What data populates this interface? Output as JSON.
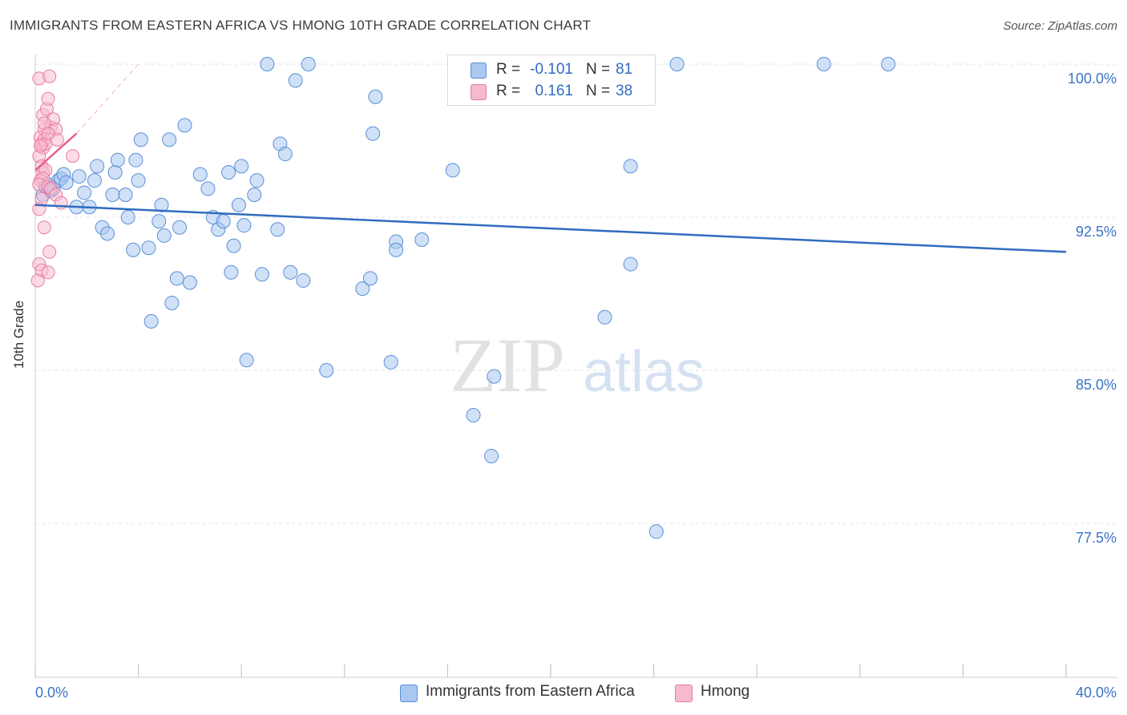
{
  "title": "IMMIGRANTS FROM EASTERN AFRICA VS HMONG 10TH GRADE CORRELATION CHART",
  "source": "Source: ZipAtlas.com",
  "watermark": {
    "zip": "ZIP",
    "atlas": "atlas"
  },
  "colors": {
    "blue_fill": "#a9c8f0",
    "blue_stroke": "#5b8fd6",
    "blue_line": "#2f6cc0",
    "pink_fill": "#f7b9cd",
    "pink_stroke": "#e97aa0",
    "pink_line": "#e8608e",
    "axis_text": "#3a74c4",
    "grid": "#e3e3e3"
  },
  "legend_top": [
    {
      "r_label": "R =",
      "r_value": "-0.101",
      "n_label": "N =",
      "n_value": "81",
      "icon": "blue-square-icon"
    },
    {
      "r_label": "R =",
      "r_value": "0.161",
      "n_label": "N =",
      "n_value": "38",
      "icon": "pink-square-icon"
    }
  ],
  "legend_bottom": [
    {
      "label": "Immigrants from Eastern Africa",
      "icon": "blue-square-icon"
    },
    {
      "label": "Hmong",
      "icon": "pink-square-icon"
    }
  ],
  "chart_data": {
    "type": "scatter",
    "title": "IMMIGRANTS FROM EASTERN AFRICA VS HMONG 10TH GRADE CORRELATION CHART",
    "xlabel": "",
    "ylabel": "10th Grade",
    "xlim": [
      0,
      40
    ],
    "ylim": [
      70,
      101.5
    ],
    "x_tick_labels": [
      "0.0%",
      "40.0%"
    ],
    "y_ticks": [
      77.5,
      85.0,
      92.5,
      100.0
    ],
    "y_tick_labels": [
      "77.5%",
      "85.0%",
      "92.5%",
      "100.0%"
    ],
    "grid": true,
    "series": [
      {
        "name": "Immigrants from Eastern Africa",
        "color": "#5b8fd6",
        "trend": {
          "x": [
            0,
            40
          ],
          "y": [
            93.1,
            90.8
          ]
        },
        "points": [
          [
            0.3,
            93.6
          ],
          [
            0.4,
            94.0
          ],
          [
            0.5,
            94.1
          ],
          [
            0.6,
            93.8
          ],
          [
            0.7,
            93.9
          ],
          [
            0.9,
            94.3
          ],
          [
            1.0,
            94.4
          ],
          [
            1.1,
            94.6
          ],
          [
            1.2,
            94.2
          ],
          [
            1.6,
            93.0
          ],
          [
            1.7,
            94.5
          ],
          [
            1.9,
            93.7
          ],
          [
            2.1,
            93.0
          ],
          [
            2.3,
            94.3
          ],
          [
            2.4,
            95.0
          ],
          [
            2.6,
            92.0
          ],
          [
            2.8,
            91.7
          ],
          [
            3.0,
            93.6
          ],
          [
            3.1,
            94.7
          ],
          [
            3.2,
            95.3
          ],
          [
            3.5,
            93.6
          ],
          [
            3.6,
            92.5
          ],
          [
            3.8,
            90.9
          ],
          [
            3.9,
            95.3
          ],
          [
            4.0,
            94.3
          ],
          [
            4.1,
            96.3
          ],
          [
            4.4,
            91.0
          ],
          [
            4.5,
            87.4
          ],
          [
            4.8,
            92.3
          ],
          [
            4.9,
            93.1
          ],
          [
            5.0,
            91.6
          ],
          [
            5.2,
            96.3
          ],
          [
            5.3,
            88.3
          ],
          [
            5.5,
            89.5
          ],
          [
            5.6,
            92.0
          ],
          [
            5.8,
            97.0
          ],
          [
            6.0,
            89.3
          ],
          [
            6.4,
            94.6
          ],
          [
            6.7,
            93.9
          ],
          [
            6.9,
            92.5
          ],
          [
            7.1,
            91.9
          ],
          [
            7.3,
            92.3
          ],
          [
            7.5,
            94.7
          ],
          [
            7.6,
            89.8
          ],
          [
            7.7,
            91.1
          ],
          [
            7.9,
            93.1
          ],
          [
            8.0,
            95.0
          ],
          [
            8.1,
            92.1
          ],
          [
            8.2,
            85.5
          ],
          [
            8.5,
            93.6
          ],
          [
            8.6,
            94.3
          ],
          [
            8.8,
            89.7
          ],
          [
            9.0,
            100.0
          ],
          [
            9.4,
            91.9
          ],
          [
            9.5,
            96.1
          ],
          [
            9.7,
            95.6
          ],
          [
            9.9,
            89.8
          ],
          [
            10.1,
            99.2
          ],
          [
            10.4,
            89.4
          ],
          [
            10.6,
            100.0
          ],
          [
            11.3,
            85.0
          ],
          [
            12.7,
            89.0
          ],
          [
            13.0,
            89.5
          ],
          [
            13.1,
            96.6
          ],
          [
            13.2,
            98.4
          ],
          [
            13.8,
            85.4
          ],
          [
            14.0,
            91.3
          ],
          [
            14.0,
            90.9
          ],
          [
            15.0,
            91.4
          ],
          [
            16.2,
            94.8
          ],
          [
            17.0,
            82.8
          ],
          [
            17.7,
            80.8
          ],
          [
            17.8,
            84.7
          ],
          [
            22.1,
            87.6
          ],
          [
            23.1,
            95.0
          ],
          [
            23.1,
            90.2
          ],
          [
            24.1,
            77.1
          ],
          [
            24.9,
            100.0
          ],
          [
            30.6,
            100.0
          ],
          [
            33.1,
            100.0
          ],
          [
            17.2,
            100.0
          ]
        ]
      },
      {
        "name": "Hmong",
        "color": "#e97aa0",
        "trend": {
          "x": [
            0,
            1.6
          ],
          "y": [
            94.8,
            96.6
          ]
        },
        "trend_extension": {
          "x": [
            1.6,
            4.0
          ],
          "y": [
            96.6,
            100.0
          ]
        },
        "points": [
          [
            0.15,
            99.3
          ],
          [
            0.3,
            97.5
          ],
          [
            0.35,
            96.8
          ],
          [
            0.45,
            97.8
          ],
          [
            0.5,
            98.3
          ],
          [
            0.55,
            99.4
          ],
          [
            0.2,
            96.4
          ],
          [
            0.25,
            96.1
          ],
          [
            0.3,
            95.9
          ],
          [
            0.35,
            96.3
          ],
          [
            0.4,
            96.1
          ],
          [
            0.6,
            96.9
          ],
          [
            0.7,
            97.3
          ],
          [
            0.8,
            96.8
          ],
          [
            0.85,
            96.3
          ],
          [
            0.15,
            95.5
          ],
          [
            0.25,
            95.0
          ],
          [
            0.3,
            94.7
          ],
          [
            0.4,
            94.8
          ],
          [
            0.2,
            94.3
          ],
          [
            0.3,
            94.4
          ],
          [
            0.15,
            94.1
          ],
          [
            0.5,
            94.0
          ],
          [
            0.6,
            93.9
          ],
          [
            0.8,
            93.6
          ],
          [
            1.0,
            93.2
          ],
          [
            0.25,
            93.4
          ],
          [
            0.15,
            92.9
          ],
          [
            0.35,
            92.0
          ],
          [
            0.55,
            90.8
          ],
          [
            0.15,
            90.2
          ],
          [
            0.25,
            89.9
          ],
          [
            0.5,
            89.8
          ],
          [
            0.1,
            89.4
          ],
          [
            1.45,
            95.5
          ],
          [
            0.35,
            97.1
          ],
          [
            0.2,
            96.0
          ],
          [
            0.5,
            96.6
          ]
        ]
      }
    ]
  }
}
